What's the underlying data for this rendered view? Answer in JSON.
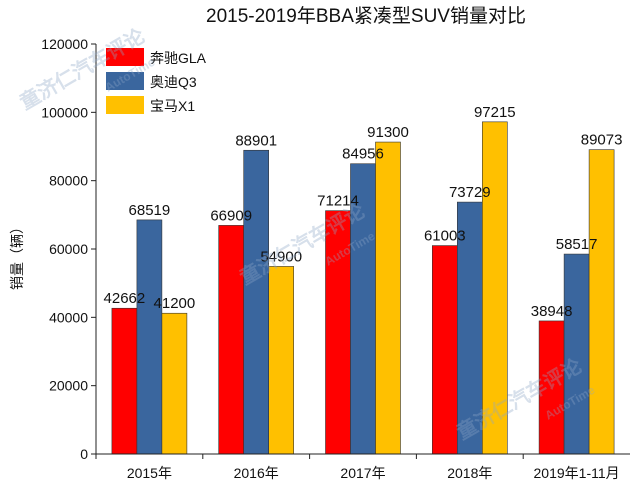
{
  "chart_data": {
    "type": "bar",
    "title": "2015-2019年BBA紧凑型SUV销量对比",
    "ylabel": "销量（辆）",
    "xlabel": "",
    "ylim": [
      0,
      120000
    ],
    "yticks": [
      0,
      20000,
      40000,
      60000,
      80000,
      100000,
      120000
    ],
    "categories": [
      "2015年",
      "2016年",
      "2017年",
      "2018年",
      "2019年1-11月"
    ],
    "series": [
      {
        "name": "奔驰GLA",
        "color": "#ff0000",
        "values": [
          42662,
          66909,
          71214,
          61003,
          38948
        ]
      },
      {
        "name": "奥迪Q3",
        "color": "#3a669e",
        "values": [
          68519,
          88901,
          84956,
          73729,
          58517
        ]
      },
      {
        "name": "宝马X1",
        "color": "#ffc000",
        "values": [
          41200,
          54900,
          91300,
          97215,
          89073
        ]
      }
    ],
    "legend_position": "top-left",
    "grid": false
  },
  "watermarks": [
    "童济仁汽车评论",
    "AutoTime"
  ]
}
